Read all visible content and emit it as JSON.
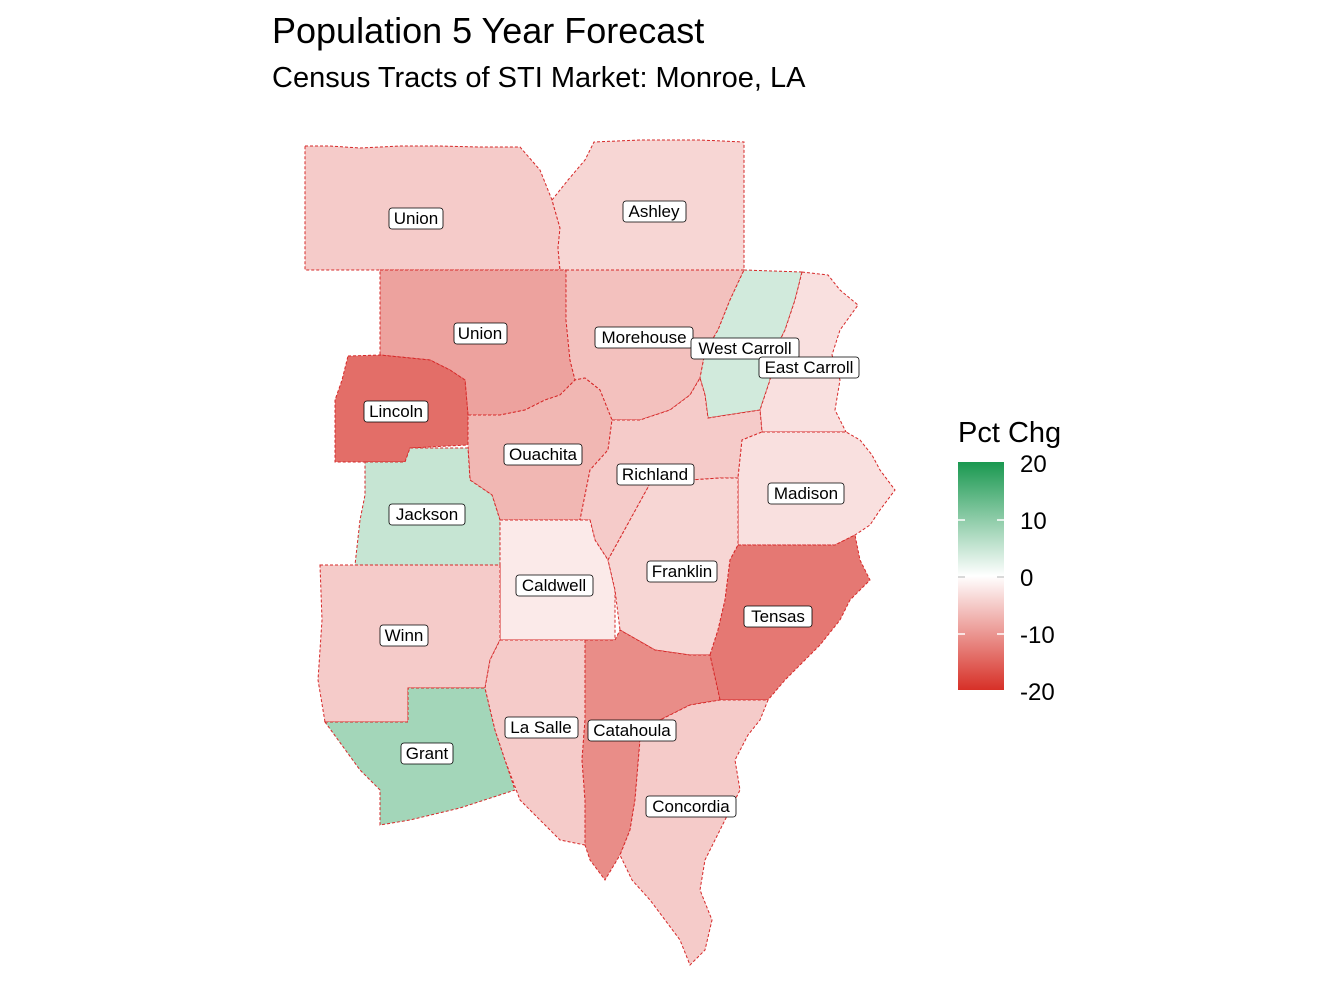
{
  "title": "Population 5 Year Forecast",
  "subtitle": "Census Tracts of STI Market: Monroe, LA",
  "legend": {
    "title": "Pct Chg",
    "ticks": [
      "20",
      "10",
      "0",
      "-10",
      "-20"
    ],
    "colors": {
      "high": "#1a9850",
      "mid": "#ffffff",
      "low": "#d73027"
    }
  },
  "counties": [
    {
      "name": "Union",
      "value": -5
    },
    {
      "name": "Ashley",
      "value": -4
    },
    {
      "name": "Union",
      "value": -9
    },
    {
      "name": "Morehouse",
      "value": -6
    },
    {
      "name": "West Carroll",
      "value": 4
    },
    {
      "name": "East Carroll",
      "value": -3
    },
    {
      "name": "Lincoln",
      "value": -14
    },
    {
      "name": "Ouachita",
      "value": -7
    },
    {
      "name": "Richland",
      "value": -5
    },
    {
      "name": "Madison",
      "value": -3
    },
    {
      "name": "Jackson",
      "value": 5
    },
    {
      "name": "Caldwell",
      "value": -2
    },
    {
      "name": "Franklin",
      "value": -4
    },
    {
      "name": "Tensas",
      "value": -13
    },
    {
      "name": "Winn",
      "value": -5
    },
    {
      "name": "Grant",
      "value": 8
    },
    {
      "name": "La Salle",
      "value": -5
    },
    {
      "name": "Catahoula",
      "value": -11
    },
    {
      "name": "Concordia",
      "value": -5
    }
  ]
}
